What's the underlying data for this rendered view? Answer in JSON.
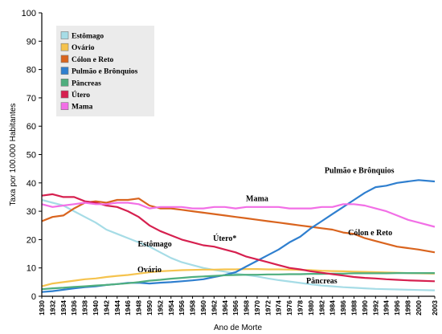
{
  "chart_data": {
    "type": "line",
    "xlabel": "Ano de Morte",
    "ylabel": "Taxa por 100.000 Habitantes",
    "xlim": [
      1930,
      2003
    ],
    "ylim": [
      0,
      100
    ],
    "yticks": [
      0,
      10,
      20,
      30,
      40,
      50,
      60,
      70,
      80,
      90,
      100
    ],
    "xticks": [
      1930,
      1932,
      1934,
      1936,
      1938,
      1940,
      1942,
      1944,
      1946,
      1948,
      1950,
      1952,
      1954,
      1956,
      1958,
      1960,
      1962,
      1964,
      1966,
      1968,
      1970,
      1972,
      1974,
      1976,
      1978,
      1980,
      1982,
      1984,
      1986,
      1988,
      1990,
      1992,
      1994,
      1996,
      1998,
      2000,
      2003
    ],
    "grid": false,
    "legend_position": "top-left",
    "series": [
      {
        "name": "Estômago",
        "color": "#a6dce6",
        "points": [
          [
            1930,
            34
          ],
          [
            1932,
            33
          ],
          [
            1934,
            32
          ],
          [
            1936,
            30
          ],
          [
            1938,
            28
          ],
          [
            1940,
            26
          ],
          [
            1942,
            23.5
          ],
          [
            1944,
            22
          ],
          [
            1946,
            20.5
          ],
          [
            1948,
            19
          ],
          [
            1950,
            17.5
          ],
          [
            1952,
            15.5
          ],
          [
            1954,
            13.5
          ],
          [
            1956,
            12
          ],
          [
            1958,
            11
          ],
          [
            1960,
            10
          ],
          [
            1962,
            9.3
          ],
          [
            1964,
            8.7
          ],
          [
            1966,
            8
          ],
          [
            1968,
            7.5
          ],
          [
            1970,
            7
          ],
          [
            1972,
            6.3
          ],
          [
            1974,
            5.7
          ],
          [
            1976,
            5.2
          ],
          [
            1978,
            4.7
          ],
          [
            1980,
            4.2
          ],
          [
            1982,
            3.8
          ],
          [
            1984,
            3.5
          ],
          [
            1986,
            3.2
          ],
          [
            1988,
            3
          ],
          [
            1990,
            2.8
          ],
          [
            1992,
            2.6
          ],
          [
            1994,
            2.5
          ],
          [
            1996,
            2.4
          ],
          [
            1998,
            2.3
          ],
          [
            2000,
            2.2
          ],
          [
            2003,
            2.1
          ]
        ]
      },
      {
        "name": "Ovário",
        "color": "#f5c34e",
        "points": [
          [
            1930,
            3.5
          ],
          [
            1932,
            4.5
          ],
          [
            1934,
            5
          ],
          [
            1936,
            5.5
          ],
          [
            1938,
            6
          ],
          [
            1940,
            6.3
          ],
          [
            1942,
            6.8
          ],
          [
            1944,
            7.2
          ],
          [
            1946,
            7.5
          ],
          [
            1948,
            8
          ],
          [
            1950,
            8.5
          ],
          [
            1952,
            8.8
          ],
          [
            1954,
            9
          ],
          [
            1956,
            9.2
          ],
          [
            1958,
            9.3
          ],
          [
            1960,
            9.4
          ],
          [
            1962,
            9.4
          ],
          [
            1964,
            9.5
          ],
          [
            1966,
            9.5
          ],
          [
            1968,
            9.6
          ],
          [
            1970,
            9.6
          ],
          [
            1972,
            9.5
          ],
          [
            1974,
            9.5
          ],
          [
            1976,
            9.4
          ],
          [
            1978,
            9.3
          ],
          [
            1980,
            9.2
          ],
          [
            1982,
            9
          ],
          [
            1984,
            8.9
          ],
          [
            1986,
            8.8
          ],
          [
            1988,
            8.7
          ],
          [
            1990,
            8.6
          ],
          [
            1992,
            8.5
          ],
          [
            1994,
            8.4
          ],
          [
            1996,
            8.3
          ],
          [
            1998,
            8.2
          ],
          [
            2000,
            8.1
          ],
          [
            2003,
            8
          ]
        ]
      },
      {
        "name": "Cólon e Reto",
        "color": "#d9641e",
        "points": [
          [
            1930,
            26.5
          ],
          [
            1932,
            28
          ],
          [
            1934,
            28.5
          ],
          [
            1936,
            31
          ],
          [
            1938,
            33
          ],
          [
            1940,
            33.5
          ],
          [
            1942,
            33
          ],
          [
            1944,
            34
          ],
          [
            1946,
            34
          ],
          [
            1948,
            34.5
          ],
          [
            1950,
            32
          ],
          [
            1952,
            31
          ],
          [
            1954,
            31
          ],
          [
            1956,
            30.5
          ],
          [
            1958,
            30
          ],
          [
            1960,
            29.5
          ],
          [
            1962,
            29
          ],
          [
            1964,
            28.5
          ],
          [
            1966,
            28
          ],
          [
            1968,
            27.5
          ],
          [
            1970,
            27
          ],
          [
            1972,
            26.5
          ],
          [
            1974,
            26
          ],
          [
            1976,
            25.5
          ],
          [
            1978,
            25
          ],
          [
            1980,
            24.5
          ],
          [
            1982,
            24
          ],
          [
            1984,
            23.5
          ],
          [
            1986,
            22.5
          ],
          [
            1988,
            22
          ],
          [
            1990,
            20.5
          ],
          [
            1992,
            19.5
          ],
          [
            1994,
            18.5
          ],
          [
            1996,
            17.5
          ],
          [
            1998,
            17
          ],
          [
            2000,
            16.5
          ],
          [
            2003,
            15.5
          ]
        ]
      },
      {
        "name": "Pulmão e Brônquios",
        "color": "#2f7fcf",
        "points": [
          [
            1930,
            1.5
          ],
          [
            1932,
            1.8
          ],
          [
            1934,
            2.3
          ],
          [
            1936,
            2.8
          ],
          [
            1938,
            3.2
          ],
          [
            1940,
            3.5
          ],
          [
            1942,
            4
          ],
          [
            1944,
            4.3
          ],
          [
            1946,
            4.7
          ],
          [
            1948,
            4.8
          ],
          [
            1950,
            4.5
          ],
          [
            1952,
            4.8
          ],
          [
            1954,
            5
          ],
          [
            1956,
            5.3
          ],
          [
            1958,
            5.6
          ],
          [
            1960,
            6
          ],
          [
            1962,
            6.8
          ],
          [
            1964,
            7.5
          ],
          [
            1966,
            8.5
          ],
          [
            1968,
            10.5
          ],
          [
            1970,
            12.5
          ],
          [
            1972,
            14.5
          ],
          [
            1974,
            16.5
          ],
          [
            1976,
            19
          ],
          [
            1978,
            21
          ],
          [
            1980,
            24
          ],
          [
            1982,
            26.5
          ],
          [
            1984,
            29
          ],
          [
            1986,
            31.5
          ],
          [
            1988,
            34
          ],
          [
            1990,
            36.5
          ],
          [
            1992,
            38.5
          ],
          [
            1994,
            39
          ],
          [
            1996,
            40
          ],
          [
            1998,
            40.5
          ],
          [
            2000,
            41
          ],
          [
            2003,
            40.5
          ]
        ]
      },
      {
        "name": "Pâncreas",
        "color": "#4fae7e",
        "points": [
          [
            1930,
            2.5
          ],
          [
            1932,
            2.8
          ],
          [
            1934,
            3
          ],
          [
            1936,
            3.3
          ],
          [
            1938,
            3.5
          ],
          [
            1940,
            3.8
          ],
          [
            1942,
            4
          ],
          [
            1944,
            4.3
          ],
          [
            1946,
            4.6
          ],
          [
            1948,
            5
          ],
          [
            1950,
            5.5
          ],
          [
            1952,
            5.8
          ],
          [
            1954,
            6.2
          ],
          [
            1956,
            6.5
          ],
          [
            1958,
            6.8
          ],
          [
            1960,
            7
          ],
          [
            1962,
            7.2
          ],
          [
            1964,
            7.4
          ],
          [
            1966,
            7.5
          ],
          [
            1968,
            7.6
          ],
          [
            1970,
            7.6
          ],
          [
            1972,
            7.7
          ],
          [
            1974,
            7.7
          ],
          [
            1976,
            7.8
          ],
          [
            1978,
            7.8
          ],
          [
            1980,
            7.9
          ],
          [
            1982,
            7.9
          ],
          [
            1984,
            8
          ],
          [
            1986,
            8
          ],
          [
            1988,
            8.1
          ],
          [
            1990,
            8.1
          ],
          [
            1992,
            8.1
          ],
          [
            1994,
            8.1
          ],
          [
            1996,
            8.2
          ],
          [
            1998,
            8.2
          ],
          [
            2000,
            8.2
          ],
          [
            2003,
            8.2
          ]
        ]
      },
      {
        "name": "Útero",
        "color": "#d6204f",
        "points": [
          [
            1930,
            35.5
          ],
          [
            1932,
            36
          ],
          [
            1934,
            35
          ],
          [
            1936,
            35
          ],
          [
            1938,
            33.5
          ],
          [
            1940,
            33
          ],
          [
            1942,
            32
          ],
          [
            1944,
            31.5
          ],
          [
            1946,
            30
          ],
          [
            1948,
            28
          ],
          [
            1950,
            25
          ],
          [
            1952,
            23
          ],
          [
            1954,
            21.5
          ],
          [
            1956,
            20
          ],
          [
            1958,
            19
          ],
          [
            1960,
            18
          ],
          [
            1962,
            17.5
          ],
          [
            1964,
            16.5
          ],
          [
            1966,
            15.5
          ],
          [
            1968,
            14
          ],
          [
            1970,
            13
          ],
          [
            1972,
            12
          ],
          [
            1974,
            11
          ],
          [
            1976,
            10
          ],
          [
            1978,
            9.5
          ],
          [
            1980,
            8.8
          ],
          [
            1982,
            8.3
          ],
          [
            1984,
            7.8
          ],
          [
            1986,
            7.3
          ],
          [
            1988,
            6.8
          ],
          [
            1990,
            6.5
          ],
          [
            1992,
            6.3
          ],
          [
            1994,
            6
          ],
          [
            1996,
            5.8
          ],
          [
            1998,
            5.6
          ],
          [
            2000,
            5.5
          ],
          [
            2003,
            5.3
          ]
        ]
      },
      {
        "name": "Mama",
        "color": "#f26fe6",
        "points": [
          [
            1930,
            32.5
          ],
          [
            1932,
            31.5
          ],
          [
            1934,
            32
          ],
          [
            1936,
            32.5
          ],
          [
            1938,
            33
          ],
          [
            1940,
            32.5
          ],
          [
            1942,
            32.5
          ],
          [
            1944,
            33
          ],
          [
            1946,
            33
          ],
          [
            1948,
            32.5
          ],
          [
            1950,
            31
          ],
          [
            1952,
            31.5
          ],
          [
            1954,
            31.5
          ],
          [
            1956,
            31.5
          ],
          [
            1958,
            31
          ],
          [
            1960,
            31
          ],
          [
            1962,
            31.5
          ],
          [
            1964,
            31.5
          ],
          [
            1966,
            31
          ],
          [
            1968,
            31.5
          ],
          [
            1970,
            31.5
          ],
          [
            1972,
            31.5
          ],
          [
            1974,
            31.5
          ],
          [
            1976,
            31
          ],
          [
            1978,
            31
          ],
          [
            1980,
            31
          ],
          [
            1982,
            31.5
          ],
          [
            1984,
            31.5
          ],
          [
            1986,
            32.5
          ],
          [
            1988,
            32.5
          ],
          [
            1990,
            32
          ],
          [
            1992,
            31
          ],
          [
            1994,
            30
          ],
          [
            1996,
            28.5
          ],
          [
            1998,
            27
          ],
          [
            2000,
            26
          ],
          [
            2003,
            24.5
          ]
        ]
      }
    ],
    "annotations": [
      {
        "text": "Pulmão e Brônquios",
        "x": 1989,
        "y": 43.5
      },
      {
        "text": "Mama",
        "x": 1970,
        "y": 33.5
      },
      {
        "text": "Cólon e Reto",
        "x": 1991,
        "y": 21.5
      },
      {
        "text": "Útero*",
        "x": 1964,
        "y": 19.5
      },
      {
        "text": "Estômago",
        "x": 1951,
        "y": 17.5
      },
      {
        "text": "Ovário",
        "x": 1950,
        "y": 8.5
      },
      {
        "text": "Pâncreas",
        "x": 1982,
        "y": 4.5
      }
    ]
  }
}
